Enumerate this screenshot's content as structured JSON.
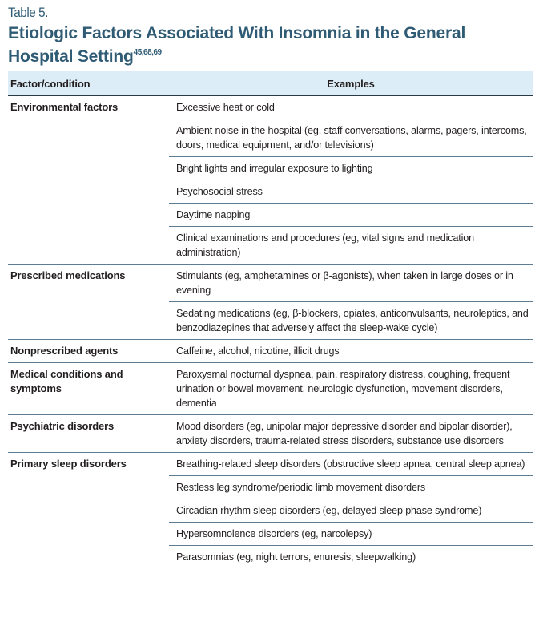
{
  "table_label": "Table 5.",
  "title": "Etiologic Factors Associated With Insomnia in the General Hospital Setting",
  "title_refs": "45,68,69",
  "headers": {
    "factor": "Factor/condition",
    "examples": "Examples"
  },
  "colors": {
    "title": "#2f5b75",
    "header_bg": "#dcedf7",
    "rule": "#5e7d92"
  },
  "groups": [
    {
      "factor": "Environmental factors",
      "examples": [
        "Excessive heat or cold",
        "Ambient noise in the hospital (eg, staff conversations, alarms, pagers, intercoms, doors, medical equipment, and/or televisions)",
        "Bright lights and irregular exposure to lighting",
        "Psychosocial stress",
        "Daytime napping",
        "Clinical examinations and procedures (eg, vital signs and medication administration)"
      ]
    },
    {
      "factor": "Prescribed medications",
      "examples": [
        "Stimulants (eg, amphetamines or β-agonists), when taken in large doses or in evening",
        "Sedating medications (eg, β-blockers, opiates, anticonvulsants, neuroleptics, and benzodiazepines that adversely affect the sleep-wake cycle)"
      ]
    },
    {
      "factor": "Nonprescribed agents",
      "examples": [
        "Caffeine, alcohol, nicotine, illicit drugs"
      ]
    },
    {
      "factor": "Medical conditions and symptoms",
      "examples": [
        "Paroxysmal nocturnal dyspnea, pain, respiratory distress, coughing, frequent urination or bowel movement, neurologic dysfunction, movement disorders, dementia"
      ]
    },
    {
      "factor": "Psychiatric disorders",
      "examples": [
        "Mood disorders (eg, unipolar major depressive disorder and bipolar disorder), anxiety disorders, trauma-related stress disorders, substance use disorders"
      ]
    },
    {
      "factor": "Primary sleep disorders",
      "examples": [
        "Breathing-related sleep disorders (obstructive sleep apnea, central sleep apnea)",
        "Restless leg syndrome/periodic limb movement disorders",
        "Circadian rhythm sleep disorders (eg, delayed sleep phase syndrome)",
        "Hypersomnolence disorders (eg, narcolepsy)",
        "Parasomnias (eg, night terrors, enuresis, sleepwalking)"
      ]
    }
  ]
}
